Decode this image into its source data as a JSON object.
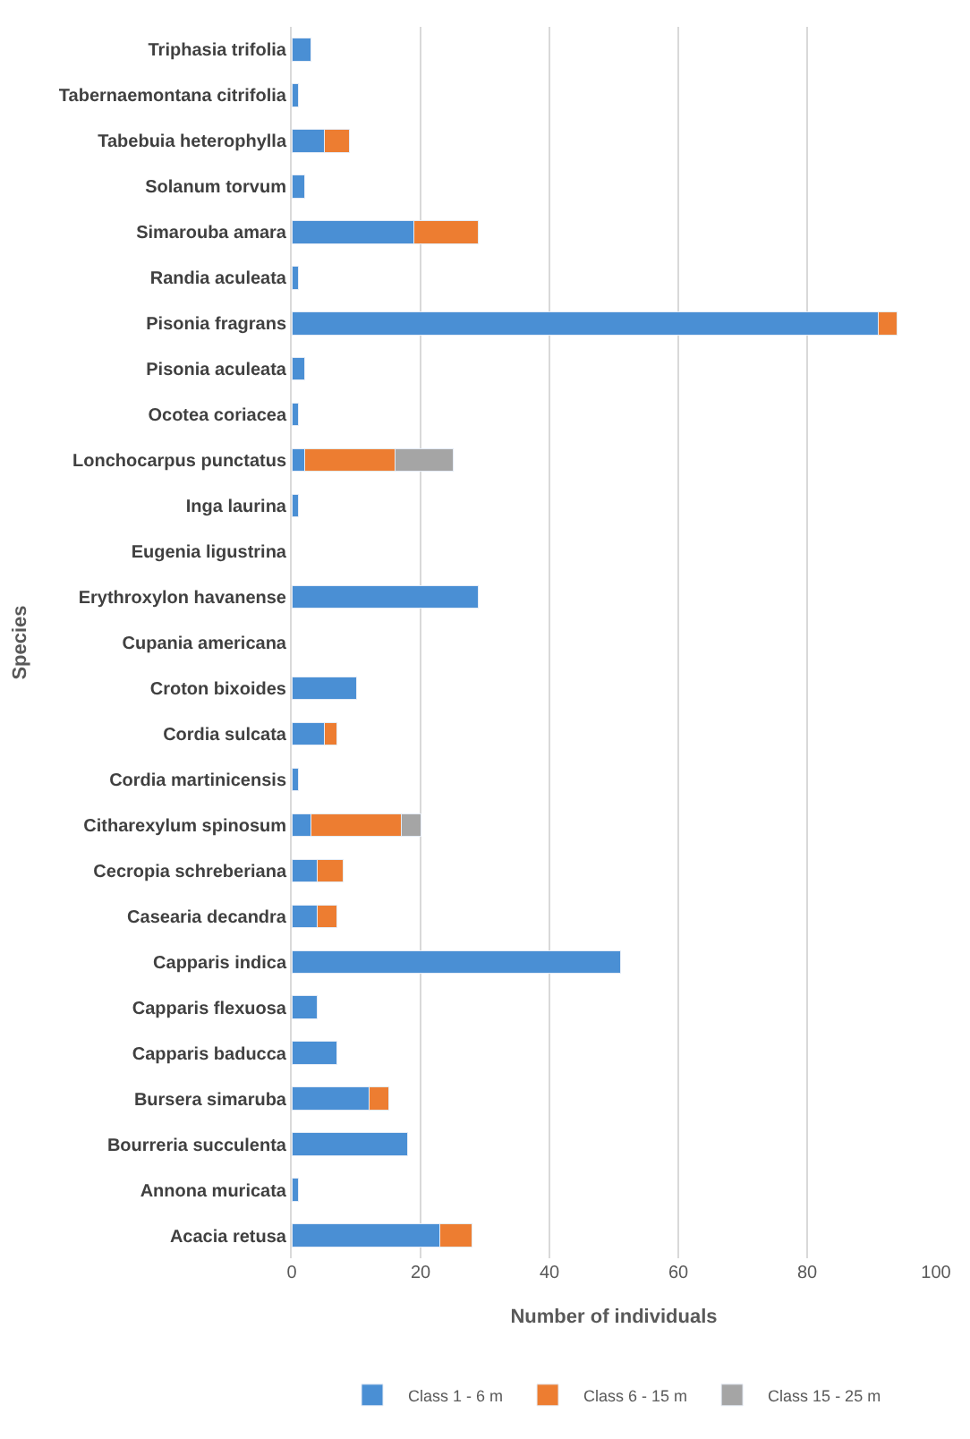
{
  "chart_data": {
    "type": "bar",
    "orientation": "horizontal",
    "stacked": true,
    "xlabel": "Number of individuals",
    "ylabel": "Species",
    "categories": [
      "Triphasia trifolia",
      "Tabernaemontana citrifolia",
      "Tabebuia heterophylla",
      "Solanum torvum",
      "Simarouba amara",
      "Randia aculeata",
      "Pisonia fragrans",
      "Pisonia aculeata",
      "Ocotea coriacea",
      "Lonchocarpus punctatus",
      "Inga laurina",
      "Eugenia ligustrina",
      "Erythroxylon havanense",
      "Cupania americana",
      "Croton bixoides",
      "Cordia sulcata",
      "Cordia martinicensis",
      "Citharexylum spinosum",
      "Cecropia schreberiana",
      "Casearia decandra",
      "Capparis indica",
      "Capparis flexuosa",
      "Capparis baducca",
      "Bursera simaruba",
      "Bourreria succulenta",
      "Annona muricata",
      "Acacia retusa"
    ],
    "series": [
      {
        "name": "Class 1 - 6 m",
        "color": "#4a8fd4",
        "values": [
          3,
          1,
          5,
          2,
          19,
          1,
          91,
          2,
          1,
          2,
          1,
          null,
          29,
          null,
          10,
          5,
          1,
          3,
          4,
          4,
          51,
          4,
          7,
          12,
          18,
          1,
          23
        ]
      },
      {
        "name": "Class 6 - 15 m",
        "color": "#ed7d31",
        "values": [
          null,
          null,
          4,
          null,
          10,
          null,
          3,
          null,
          null,
          14,
          null,
          null,
          null,
          null,
          null,
          2,
          null,
          14,
          4,
          3,
          null,
          null,
          null,
          3,
          null,
          null,
          5
        ]
      },
      {
        "name": "Class 15 - 25 m",
        "color": "#a5a5a5",
        "values": [
          null,
          null,
          null,
          null,
          null,
          null,
          null,
          null,
          null,
          9,
          null,
          null,
          null,
          null,
          null,
          null,
          null,
          3,
          null,
          null,
          null,
          null,
          null,
          null,
          null,
          null,
          null
        ]
      }
    ],
    "xlim": [
      0,
      100
    ],
    "xticks": [
      0,
      20,
      40,
      60,
      80,
      100
    ],
    "grid": "x",
    "legend": "bottom"
  }
}
